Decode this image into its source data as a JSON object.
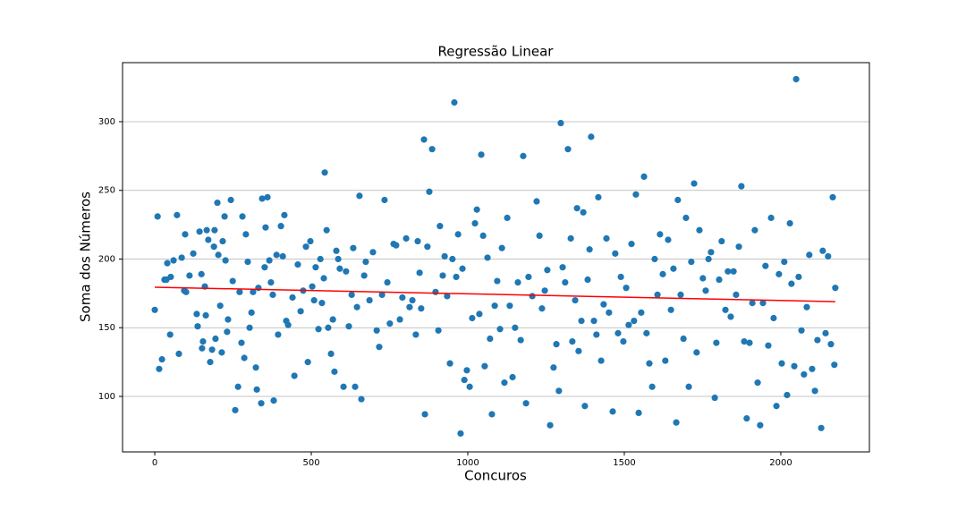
{
  "chart_data": {
    "type": "scatter",
    "title": "Regressão Linear",
    "x_label": "Concuros",
    "y_label": "Soma dos Números",
    "color": "#1f77b4",
    "x": [
      0,
      9,
      14,
      23,
      31,
      37,
      40,
      49,
      51,
      60,
      71,
      77,
      86,
      94,
      97,
      100,
      111,
      123,
      134,
      137,
      143,
      149,
      151,
      154,
      160,
      163,
      166,
      171,
      177,
      183,
      189,
      191,
      194,
      200,
      203,
      209,
      214,
      217,
      223,
      226,
      231,
      234,
      243,
      249,
      257,
      266,
      271,
      277,
      280,
      286,
      291,
      297,
      303,
      309,
      314,
      323,
      326,
      331,
      340,
      343,
      351,
      354,
      360,
      366,
      371,
      377,
      380,
      389,
      394,
      403,
      409,
      414,
      420,
      426,
      440,
      446,
      457,
      466,
      474,
      483,
      489,
      497,
      503,
      509,
      514,
      523,
      529,
      534,
      540,
      543,
      549,
      554,
      563,
      569,
      574,
      580,
      586,
      591,
      603,
      611,
      620,
      629,
      634,
      640,
      646,
      654,
      660,
      669,
      674,
      686,
      697,
      709,
      717,
      726,
      734,
      743,
      751,
      763,
      771,
      783,
      791,
      803,
      814,
      823,
      834,
      840,
      846,
      851,
      860,
      863,
      871,
      877,
      886,
      897,
      906,
      911,
      920,
      926,
      934,
      943,
      951,
      957,
      963,
      969,
      977,
      983,
      989,
      997,
      1006,
      1014,
      1023,
      1029,
      1037,
      1043,
      1049,
      1054,
      1063,
      1071,
      1077,
      1086,
      1094,
      1103,
      1109,
      1117,
      1126,
      1134,
      1143,
      1151,
      1160,
      1169,
      1177,
      1186,
      1194,
      1206,
      1220,
      1229,
      1237,
      1246,
      1254,
      1263,
      1274,
      1283,
      1291,
      1297,
      1303,
      1311,
      1320,
      1329,
      1334,
      1343,
      1349,
      1354,
      1363,
      1369,
      1374,
      1383,
      1389,
      1394,
      1403,
      1411,
      1417,
      1426,
      1434,
      1443,
      1451,
      1463,
      1471,
      1480,
      1489,
      1497,
      1506,
      1514,
      1523,
      1531,
      1537,
      1546,
      1554,
      1563,
      1571,
      1580,
      1589,
      1597,
      1606,
      1614,
      1623,
      1631,
      1640,
      1649,
      1657,
      1666,
      1671,
      1680,
      1689,
      1697,
      1706,
      1714,
      1723,
      1731,
      1740,
      1751,
      1760,
      1769,
      1777,
      1789,
      1794,
      1803,
      1811,
      1823,
      1831,
      1840,
      1849,
      1857,
      1866,
      1874,
      1883,
      1891,
      1900,
      1909,
      1917,
      1926,
      1934,
      1943,
      1951,
      1960,
      1969,
      1977,
      1986,
      1994,
      2003,
      2011,
      2020,
      2029,
      2034,
      2043,
      2049,
      2057,
      2066,
      2074,
      2083,
      2091,
      2100,
      2109,
      2117,
      2129,
      2134,
      2143,
      2151,
      2160,
      2166,
      2171,
      2174
    ],
    "y": [
      163,
      231,
      120,
      127,
      185,
      185,
      197,
      145,
      187,
      199,
      232,
      131,
      201,
      177,
      218,
      176,
      188,
      204,
      160,
      151,
      220,
      189,
      135,
      140,
      180,
      159,
      221,
      214,
      125,
      134,
      209,
      221,
      142,
      241,
      203,
      166,
      132,
      213,
      231,
      199,
      147,
      156,
      243,
      184,
      90,
      107,
      176,
      139,
      231,
      128,
      218,
      198,
      150,
      161,
      176,
      121,
      105,
      179,
      95,
      244,
      194,
      223,
      245,
      199,
      183,
      174,
      97,
      203,
      145,
      224,
      202,
      232,
      155,
      152,
      172,
      115,
      196,
      162,
      177,
      209,
      125,
      213,
      180,
      170,
      194,
      149,
      200,
      168,
      186,
      263,
      221,
      150,
      131,
      156,
      118,
      206,
      200,
      193,
      107,
      191,
      151,
      174,
      208,
      107,
      165,
      246,
      98,
      188,
      198,
      170,
      205,
      148,
      136,
      174,
      243,
      183,
      153,
      211,
      210,
      156,
      172,
      215,
      165,
      170,
      145,
      213,
      190,
      164,
      287,
      87,
      209,
      249,
      280,
      176,
      148,
      224,
      188,
      202,
      173,
      124,
      200,
      314,
      187,
      218,
      73,
      193,
      112,
      119,
      107,
      157,
      226,
      236,
      160,
      276,
      217,
      122,
      201,
      142,
      87,
      166,
      184,
      149,
      208,
      110,
      230,
      166,
      114,
      150,
      183,
      141,
      275,
      95,
      187,
      173,
      242,
      217,
      164,
      177,
      192,
      79,
      121,
      138,
      104,
      299,
      194,
      183,
      280,
      215,
      140,
      170,
      237,
      133,
      155,
      234,
      93,
      185,
      207,
      289,
      155,
      145,
      245,
      126,
      167,
      215,
      161,
      89,
      204,
      146,
      187,
      140,
      179,
      152,
      211,
      155,
      247,
      88,
      161,
      260,
      146,
      124,
      107,
      200,
      174,
      218,
      189,
      126,
      214,
      163,
      193,
      81,
      243,
      174,
      142,
      230,
      107,
      198,
      255,
      132,
      221,
      186,
      177,
      200,
      205,
      99,
      139,
      185,
      213,
      163,
      191,
      158,
      191,
      174,
      209,
      253,
      140,
      84,
      139,
      168,
      221,
      110,
      79,
      168,
      195,
      137,
      230,
      157,
      93,
      189,
      124,
      198,
      101,
      226,
      182,
      122,
      331,
      187,
      148,
      116,
      165,
      203,
      120,
      104,
      141,
      77,
      206,
      146,
      202,
      138,
      245,
      123,
      179
    ],
    "trend_line": {
      "x": [
        0,
        2174
      ],
      "y": [
        179.5,
        169
      ],
      "color": "red"
    },
    "xlim": [
      -103,
      2283
    ],
    "ylim": [
      59.6,
      343
    ],
    "xticks": [
      0,
      500,
      1000,
      1500,
      2000
    ],
    "yticks": [
      100,
      150,
      200,
      250,
      300
    ],
    "grid": "y"
  }
}
